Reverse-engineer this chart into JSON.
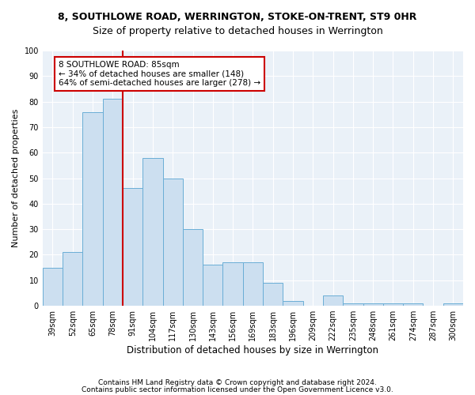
{
  "title": "8, SOUTHLOWE ROAD, WERRINGTON, STOKE-ON-TRENT, ST9 0HR",
  "subtitle": "Size of property relative to detached houses in Werrington",
  "xlabel": "Distribution of detached houses by size in Werrington",
  "ylabel": "Number of detached properties",
  "categories": [
    "39sqm",
    "52sqm",
    "65sqm",
    "78sqm",
    "91sqm",
    "104sqm",
    "117sqm",
    "130sqm",
    "143sqm",
    "156sqm",
    "169sqm",
    "183sqm",
    "196sqm",
    "209sqm",
    "222sqm",
    "235sqm",
    "248sqm",
    "261sqm",
    "274sqm",
    "287sqm",
    "300sqm"
  ],
  "values": [
    15,
    21,
    76,
    81,
    46,
    58,
    50,
    30,
    16,
    17,
    17,
    9,
    2,
    0,
    4,
    1,
    1,
    1,
    1,
    0,
    1
  ],
  "bar_color": "#ccdff0",
  "bar_edge_color": "#6aaed6",
  "vline_x": 3.5,
  "vline_color": "#cc0000",
  "annotation_text": "8 SOUTHLOWE ROAD: 85sqm\n← 34% of detached houses are smaller (148)\n64% of semi-detached houses are larger (278) →",
  "annotation_box_color": "#ffffff",
  "annotation_box_edge": "#cc0000",
  "ylim": [
    0,
    100
  ],
  "yticks": [
    0,
    10,
    20,
    30,
    40,
    50,
    60,
    70,
    80,
    90,
    100
  ],
  "footer1": "Contains HM Land Registry data © Crown copyright and database right 2024.",
  "footer2": "Contains public sector information licensed under the Open Government Licence v3.0.",
  "title_fontsize": 9,
  "subtitle_fontsize": 9,
  "xlabel_fontsize": 8.5,
  "ylabel_fontsize": 8,
  "tick_fontsize": 7,
  "annotation_fontsize": 7.5,
  "footer_fontsize": 6.5,
  "background_color": "#ffffff",
  "plot_background": "#eaf1f8"
}
